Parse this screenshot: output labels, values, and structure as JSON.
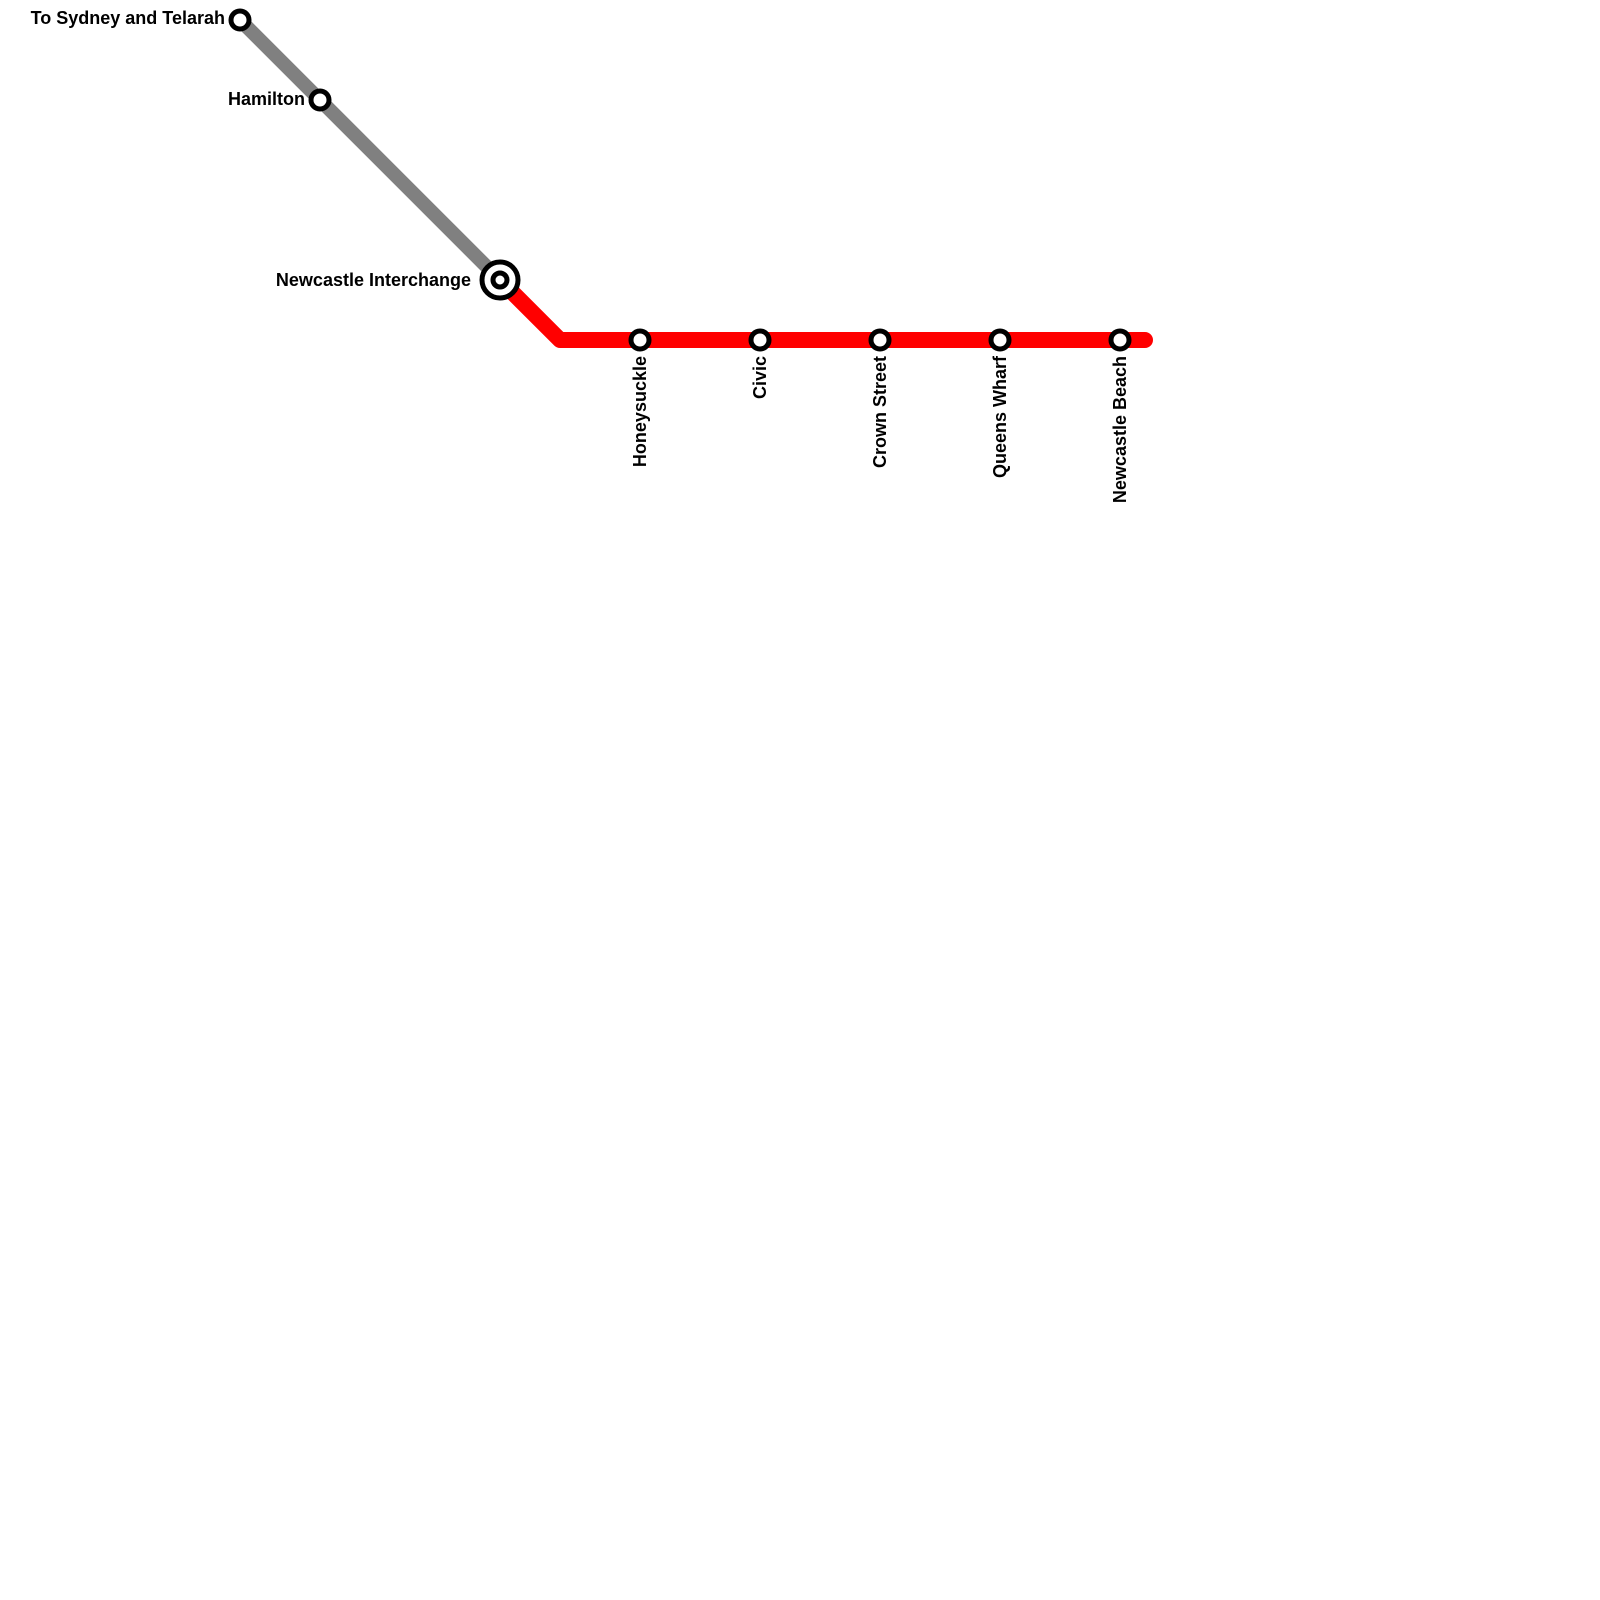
{
  "map": {
    "lines": [
      {
        "id": "heavy-rail",
        "color": "#808080"
      },
      {
        "id": "light-rail",
        "color": "#ff0000"
      }
    ],
    "stations": {
      "sydney_telarah": "To Sydney and Telarah",
      "hamilton": "Hamilton",
      "newcastle_interchange": "Newcastle Interchange",
      "honeysuckle": "Honeysuckle",
      "civic": "Civic",
      "crown_street": "Crown Street",
      "queens_wharf": "Queens Wharf",
      "newcastle_beach": "Newcastle Beach"
    },
    "interchange_stations": [
      "Newcastle Interchange"
    ]
  }
}
